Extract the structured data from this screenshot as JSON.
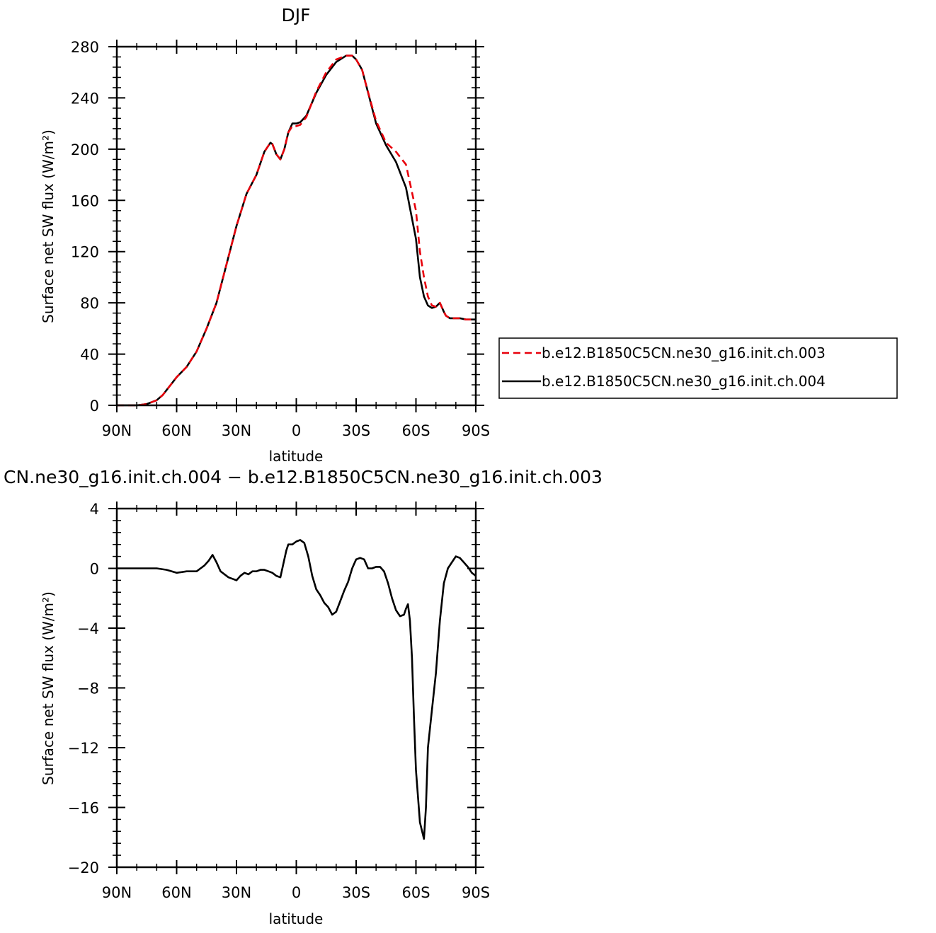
{
  "chart_data": [
    {
      "type": "line",
      "title": "DJF",
      "xlabel": "latitude",
      "ylabel": "Surface net SW flux (W/m²)",
      "x_tick_labels": [
        "90N",
        "60N",
        "30N",
        "0",
        "30S",
        "60S",
        "90S"
      ],
      "x_ticks": [
        -90,
        -60,
        -30,
        0,
        30,
        60,
        90
      ],
      "xlim": [
        -90,
        90
      ],
      "ylim": [
        0,
        280
      ],
      "y_ticks": [
        0,
        40,
        80,
        120,
        160,
        200,
        240,
        280
      ],
      "y_tick_labels": [
        "0",
        "40",
        "80",
        "120",
        "160",
        "200",
        "240",
        "280"
      ],
      "grid": false,
      "legend_position": "right, outside plot",
      "series": [
        {
          "name": "b.e12.B1850C5CN.ne30_g16.init.ch.003",
          "color": "#e8000b",
          "dash": "dashed",
          "x": [
            -90,
            -80,
            -75,
            -70,
            -67,
            -65,
            -62,
            -60,
            -55,
            -50,
            -45,
            -40,
            -35,
            -30,
            -25,
            -20,
            -16,
            -13,
            -12,
            -10,
            -8,
            -6,
            -4,
            -2,
            0,
            2,
            5,
            10,
            15,
            20,
            25,
            28,
            30,
            33,
            35,
            40,
            45,
            50,
            55,
            60,
            62,
            64,
            66,
            68,
            70,
            72,
            74,
            75,
            77,
            80,
            82,
            85,
            90
          ],
          "y": [
            0,
            0,
            1,
            4,
            8,
            12,
            18,
            22,
            30,
            42,
            60,
            80,
            110,
            140,
            165,
            180,
            198,
            205,
            204,
            196,
            192,
            200,
            213,
            218,
            218,
            219,
            225,
            245,
            260,
            270,
            273,
            273,
            270,
            262,
            250,
            222,
            205,
            198,
            188,
            152,
            120,
            100,
            85,
            78,
            77,
            80,
            73,
            70,
            68,
            68,
            68,
            67,
            67
          ]
        },
        {
          "name": "b.e12.B1850C5CN.ne30_g16.init.ch.004",
          "color": "#000000",
          "dash": "solid",
          "x": [
            -90,
            -80,
            -75,
            -70,
            -67,
            -65,
            -62,
            -60,
            -55,
            -50,
            -45,
            -40,
            -35,
            -30,
            -25,
            -20,
            -16,
            -13,
            -12,
            -10,
            -8,
            -6,
            -4,
            -2,
            0,
            2,
            5,
            10,
            15,
            20,
            25,
            28,
            30,
            33,
            35,
            40,
            45,
            50,
            55,
            60,
            62,
            64,
            66,
            68,
            70,
            72,
            74,
            75,
            77,
            80,
            82,
            85,
            90
          ],
          "y": [
            0,
            0,
            1,
            4,
            8,
            12,
            18,
            22,
            30,
            42,
            60,
            80,
            110,
            140,
            165,
            180,
            198,
            205,
            204,
            196,
            192,
            200,
            213,
            220,
            220,
            221,
            226,
            244,
            258,
            268,
            273,
            273,
            270,
            262,
            250,
            220,
            203,
            190,
            170,
            130,
            100,
            85,
            78,
            76,
            77,
            80,
            73,
            70,
            68,
            68,
            68,
            67,
            67
          ]
        }
      ]
    },
    {
      "type": "line",
      "title": "CN.ne30_g16.init.ch.004 − b.e12.B1850C5CN.ne30_g16.init.ch.003",
      "xlabel": "latitude",
      "ylabel": "Surface net SW flux (W/m²)",
      "x_tick_labels": [
        "90N",
        "60N",
        "30N",
        "0",
        "30S",
        "60S",
        "90S"
      ],
      "x_ticks": [
        -90,
        -60,
        -30,
        0,
        30,
        60,
        90
      ],
      "xlim": [
        -90,
        90
      ],
      "ylim": [
        -20,
        4
      ],
      "y_ticks": [
        -20,
        -16,
        -12,
        -8,
        -4,
        0,
        4
      ],
      "y_tick_labels": [
        "−20",
        "−16",
        "−12",
        "−8",
        "−4",
        "0",
        "4"
      ],
      "grid": false,
      "series": [
        {
          "color": "#000000",
          "dash": "solid",
          "x": [
            -90,
            -75,
            -70,
            -65,
            -60,
            -55,
            -50,
            -48,
            -46,
            -44,
            -42,
            -40,
            -38,
            -36,
            -34,
            -32,
            -30,
            -28,
            -26,
            -24,
            -22,
            -20,
            -18,
            -16,
            -14,
            -12,
            -10,
            -8,
            -6,
            -5,
            -4,
            -2,
            0,
            2,
            4,
            6,
            8,
            10,
            12,
            14,
            16,
            18,
            20,
            22,
            24,
            26,
            28,
            30,
            32,
            34,
            36,
            38,
            40,
            42,
            44,
            46,
            48,
            50,
            52,
            54,
            55,
            56,
            57,
            58,
            59,
            60,
            62,
            64,
            65,
            66,
            68,
            70,
            72,
            74,
            76,
            78,
            80,
            82,
            84,
            86,
            88,
            90
          ],
          "y": [
            0,
            0,
            0,
            -0.1,
            -0.3,
            -0.2,
            -0.2,
            0,
            0.2,
            0.5,
            0.9,
            0.4,
            -0.2,
            -0.4,
            -0.6,
            -0.7,
            -0.8,
            -0.5,
            -0.3,
            -0.4,
            -0.2,
            -0.2,
            -0.1,
            -0.1,
            -0.2,
            -0.3,
            -0.5,
            -0.6,
            0.6,
            1.2,
            1.6,
            1.6,
            1.8,
            1.9,
            1.7,
            0.8,
            -0.5,
            -1.4,
            -1.8,
            -2.3,
            -2.6,
            -3.1,
            -2.9,
            -2.2,
            -1.5,
            -0.9,
            0,
            0.6,
            0.7,
            0.6,
            0,
            0,
            0.1,
            0.1,
            -0.2,
            -1.0,
            -2.0,
            -2.8,
            -3.2,
            -3.1,
            -2.7,
            -2.4,
            -3.5,
            -6,
            -10,
            -13.5,
            -17,
            -18.1,
            -16,
            -12,
            -9.5,
            -7,
            -3.5,
            -1,
            0,
            0.4,
            0.8,
            0.7,
            0.4,
            0.1,
            -0.3,
            -0.5
          ]
        }
      ]
    }
  ]
}
